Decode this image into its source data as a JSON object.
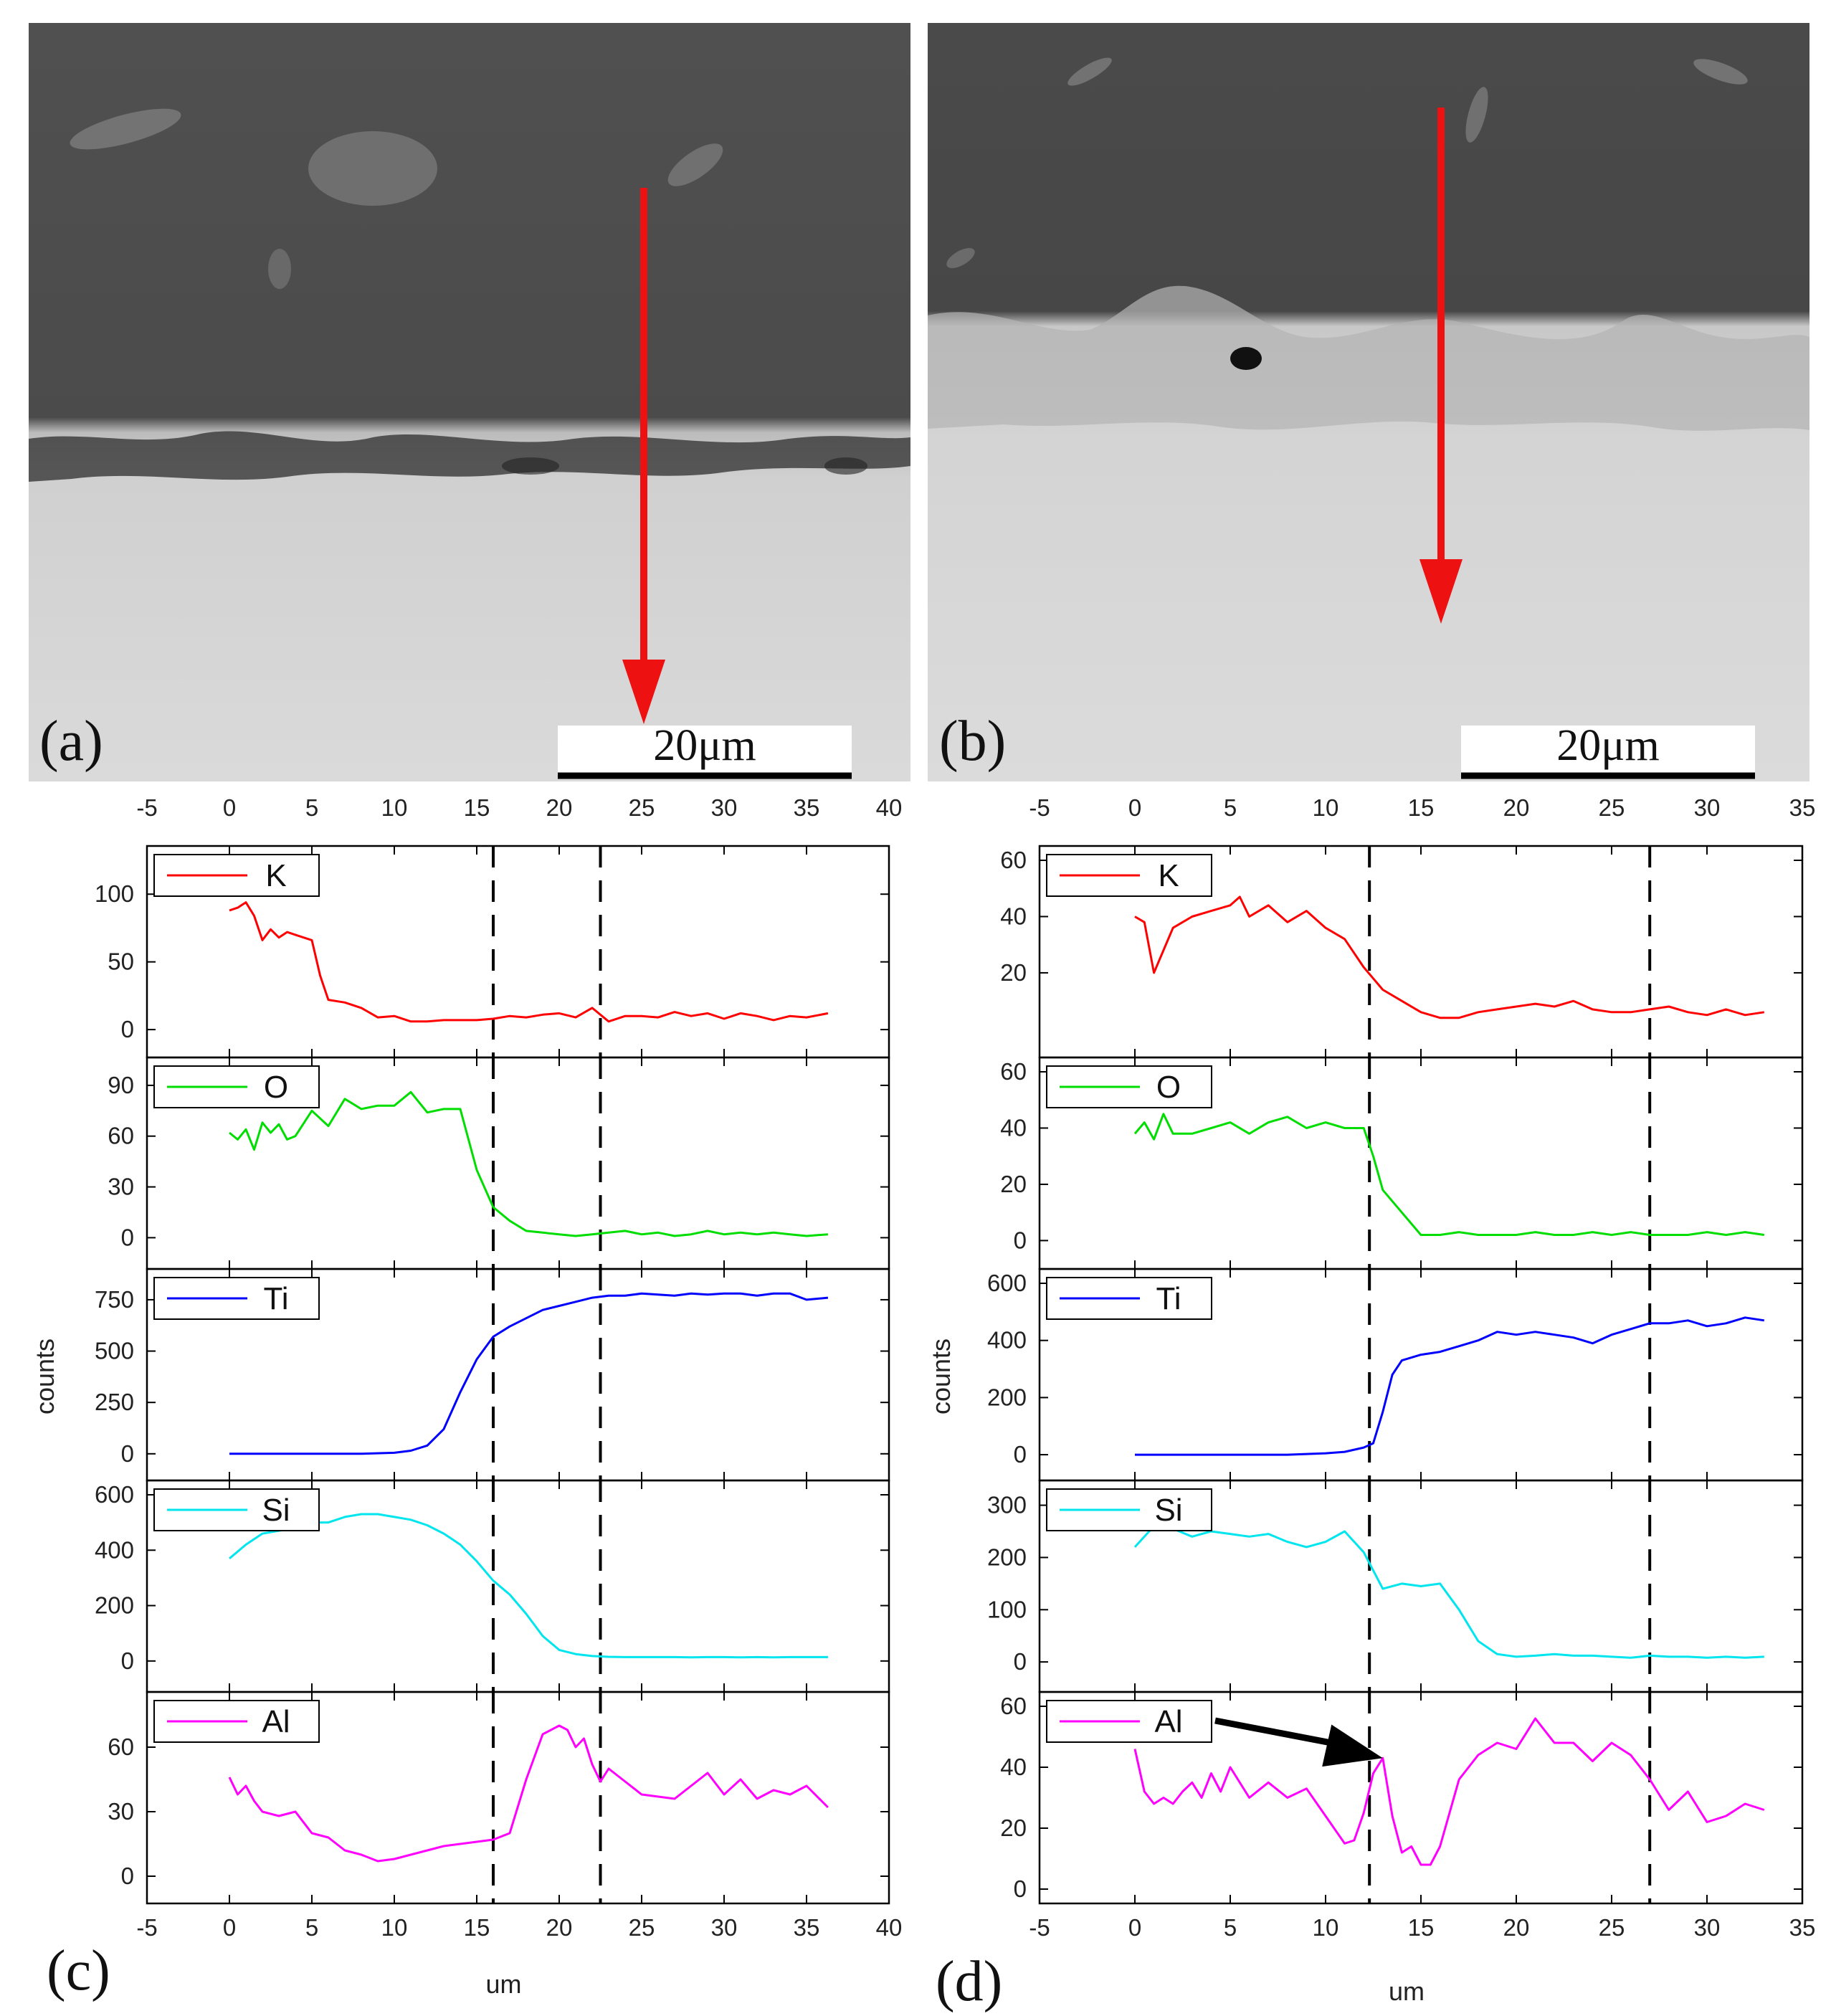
{
  "images": [
    {
      "label": "(a)",
      "scalebar": "20μm"
    },
    {
      "label": "(b)",
      "scalebar": "20μm"
    }
  ],
  "chart_data": [
    {
      "type": "line",
      "panel_label": "(c)",
      "xlabel": "um",
      "ylabel": "counts",
      "xlim": [
        -5,
        40
      ],
      "xticks": [
        -5,
        0,
        5,
        10,
        15,
        20,
        25,
        30,
        35,
        40
      ],
      "dashed_x": [
        16,
        22.5
      ],
      "subplots": [
        {
          "name": "K",
          "color": "#ff0000",
          "ylim": [
            -10,
            125
          ],
          "yticks": [
            0,
            50,
            100
          ],
          "x": [
            0,
            0.5,
            1,
            1.5,
            2,
            2.5,
            3,
            3.5,
            4,
            4.5,
            5,
            5.5,
            6,
            7,
            8,
            9,
            10,
            11,
            12,
            13,
            14,
            15,
            16,
            17,
            18,
            19,
            20,
            21,
            22,
            23,
            24,
            25,
            26,
            27,
            28,
            29,
            30,
            31,
            32,
            33,
            34,
            35,
            36.3
          ],
          "y": [
            88,
            90,
            94,
            84,
            66,
            74,
            68,
            72,
            70,
            68,
            66,
            40,
            22,
            20,
            16,
            9,
            10,
            6,
            6,
            7,
            7,
            7,
            8,
            10,
            9,
            11,
            12,
            9,
            16,
            6,
            10,
            10,
            9,
            13,
            10,
            12,
            8,
            12,
            10,
            7,
            10,
            9,
            12
          ]
        },
        {
          "name": "O",
          "color": "#00dd00",
          "ylim": [
            -10,
            98
          ],
          "yticks": [
            0,
            30,
            60,
            90
          ],
          "x": [
            0,
            0.5,
            1,
            1.5,
            2,
            2.5,
            3,
            3.5,
            4,
            5,
            6,
            7,
            8,
            9,
            10,
            11,
            12,
            13,
            14,
            15,
            16,
            17,
            18,
            19,
            20,
            21,
            22,
            23,
            24,
            25,
            26,
            27,
            28,
            29,
            30,
            31,
            32,
            33,
            34,
            35,
            36.3
          ],
          "y": [
            62,
            58,
            64,
            52,
            68,
            62,
            67,
            58,
            60,
            75,
            66,
            82,
            76,
            78,
            78,
            86,
            74,
            76,
            76,
            40,
            18,
            10,
            4,
            3,
            2,
            1,
            2,
            3,
            4,
            2,
            3,
            1,
            2,
            4,
            2,
            3,
            2,
            3,
            2,
            1,
            2
          ]
        },
        {
          "name": "Ti",
          "color": "#0000ff",
          "ylim": [
            -60,
            830
          ],
          "yticks": [
            0,
            250,
            500,
            750
          ],
          "x": [
            0,
            2,
            4,
            6,
            8,
            10,
            11,
            12,
            13,
            14,
            15,
            16,
            17,
            18,
            19,
            20,
            21,
            22,
            23,
            24,
            25,
            26,
            27,
            28,
            29,
            30,
            31,
            32,
            33,
            34,
            35,
            36.3
          ],
          "y": [
            0,
            0,
            0,
            0,
            0,
            5,
            15,
            40,
            120,
            300,
            460,
            570,
            620,
            660,
            700,
            720,
            740,
            760,
            770,
            770,
            780,
            775,
            770,
            780,
            775,
            780,
            780,
            770,
            780,
            780,
            750,
            760
          ]
        },
        {
          "name": "Si",
          "color": "#00e5ee",
          "ylim": [
            -60,
            600
          ],
          "yticks": [
            0,
            200,
            400,
            600
          ],
          "x": [
            0,
            1,
            2,
            3,
            4,
            5,
            6,
            7,
            8,
            9,
            10,
            11,
            12,
            13,
            14,
            15,
            16,
            17,
            18,
            19,
            20,
            21,
            22,
            23,
            24,
            25,
            26,
            27,
            28,
            29,
            30,
            31,
            32,
            33,
            34,
            35,
            36.3
          ],
          "y": [
            370,
            420,
            460,
            470,
            480,
            500,
            500,
            520,
            530,
            530,
            520,
            510,
            490,
            460,
            420,
            360,
            290,
            240,
            170,
            90,
            40,
            25,
            18,
            15,
            14,
            14,
            14,
            14,
            13,
            14,
            14,
            13,
            14,
            13,
            14,
            14,
            14
          ]
        },
        {
          "name": "Al",
          "color": "#ff00ff",
          "ylim": [
            -6,
            79
          ],
          "yticks": [
            0,
            30,
            60
          ],
          "x": [
            0,
            0.5,
            1,
            1.5,
            2,
            3,
            4,
            5,
            6,
            7,
            8,
            9,
            10,
            11,
            12,
            13,
            14,
            15,
            16,
            17,
            18,
            19,
            20,
            20.5,
            21,
            21.5,
            22,
            22.5,
            23,
            24,
            25,
            26,
            27,
            28,
            29,
            30,
            31,
            32,
            33,
            34,
            35,
            36.3
          ],
          "y": [
            46,
            38,
            42,
            35,
            30,
            28,
            30,
            20,
            18,
            12,
            10,
            7,
            8,
            10,
            12,
            14,
            15,
            16,
            17,
            20,
            45,
            66,
            70,
            68,
            60,
            64,
            52,
            44,
            50,
            44,
            38,
            37,
            36,
            42,
            48,
            38,
            45,
            36,
            40,
            38,
            42,
            32
          ]
        }
      ]
    },
    {
      "type": "line",
      "panel_label": "(d)",
      "xlabel": "um",
      "ylabel": "counts",
      "xlim": [
        -5,
        35
      ],
      "xticks": [
        -5,
        0,
        5,
        10,
        15,
        20,
        25,
        30,
        35
      ],
      "dashed_x": [
        12.3,
        27
      ],
      "annotation": {
        "target": "Al",
        "x": 13,
        "y": 43,
        "note": "arrow from legend"
      },
      "subplots": [
        {
          "name": "K",
          "color": "#ff0000",
          "ylim": [
            -5,
            60
          ],
          "yticks": [
            20,
            40,
            60
          ],
          "x": [
            0,
            0.5,
            1,
            1.5,
            2,
            3,
            4,
            5,
            5.5,
            6,
            7,
            8,
            9,
            10,
            11,
            12,
            12.5,
            13,
            14,
            15,
            16,
            17,
            18,
            19,
            20,
            21,
            22,
            23,
            24,
            25,
            26,
            27,
            28,
            29,
            30,
            31,
            32,
            33
          ],
          "y": [
            40,
            38,
            20,
            28,
            36,
            40,
            42,
            44,
            47,
            40,
            44,
            38,
            42,
            36,
            32,
            22,
            18,
            14,
            10,
            6,
            4,
            4,
            6,
            7,
            8,
            9,
            8,
            10,
            7,
            6,
            6,
            7,
            8,
            6,
            5,
            7,
            5,
            6
          ]
        },
        {
          "name": "O",
          "color": "#00dd00",
          "ylim": [
            -5,
            60
          ],
          "yticks": [
            0,
            20,
            40,
            60
          ],
          "x": [
            0,
            0.5,
            1,
            1.5,
            2,
            3,
            4,
            5,
            6,
            7,
            8,
            9,
            10,
            11,
            12,
            12.5,
            13,
            14,
            15,
            16,
            17,
            18,
            19,
            20,
            21,
            22,
            23,
            24,
            25,
            26,
            27,
            28,
            29,
            30,
            31,
            32,
            33
          ],
          "y": [
            38,
            42,
            36,
            45,
            38,
            38,
            40,
            42,
            38,
            42,
            44,
            40,
            42,
            40,
            40,
            30,
            18,
            10,
            2,
            2,
            3,
            2,
            2,
            2,
            3,
            2,
            2,
            3,
            2,
            3,
            2,
            2,
            2,
            3,
            2,
            3,
            2
          ]
        },
        {
          "name": "Ti",
          "color": "#0000ff",
          "ylim": [
            -40,
            600
          ],
          "yticks": [
            0,
            200,
            400,
            600
          ],
          "x": [
            0,
            2,
            4,
            6,
            8,
            10,
            11,
            12,
            12.5,
            13,
            13.5,
            14,
            15,
            16,
            17,
            18,
            19,
            20,
            21,
            22,
            23,
            24,
            25,
            26,
            27,
            28,
            29,
            30,
            31,
            32,
            33
          ],
          "y": [
            0,
            0,
            0,
            0,
            0,
            5,
            10,
            25,
            40,
            150,
            280,
            330,
            350,
            360,
            380,
            400,
            430,
            420,
            430,
            420,
            410,
            390,
            420,
            440,
            460,
            460,
            470,
            450,
            460,
            480,
            470
          ]
        },
        {
          "name": "Si",
          "color": "#00e5ee",
          "ylim": [
            -30,
            320
          ],
          "yticks": [
            0,
            100,
            200,
            300
          ],
          "x": [
            0,
            0.5,
            1,
            2,
            3,
            4,
            5,
            6,
            7,
            8,
            9,
            10,
            11,
            12,
            12.5,
            13,
            14,
            15,
            16,
            17,
            18,
            19,
            20,
            21,
            22,
            23,
            24,
            25,
            26,
            27,
            28,
            29,
            30,
            31,
            32,
            33
          ],
          "y": [
            220,
            240,
            260,
            255,
            240,
            250,
            245,
            240,
            245,
            230,
            220,
            230,
            250,
            210,
            175,
            140,
            150,
            145,
            150,
            100,
            40,
            15,
            10,
            12,
            15,
            12,
            12,
            10,
            8,
            12,
            10,
            10,
            8,
            10,
            8,
            10
          ]
        },
        {
          "name": "Al",
          "color": "#ff00ff",
          "ylim": [
            0,
            60
          ],
          "yticks": [
            0,
            20,
            40,
            60
          ],
          "x": [
            0,
            0.5,
            1,
            1.5,
            2,
            2.5,
            3,
            3.5,
            4,
            4.5,
            5,
            6,
            7,
            8,
            9,
            10,
            11,
            11.5,
            12,
            12.5,
            13,
            13.5,
            14,
            14.5,
            15,
            15.5,
            16,
            17,
            18,
            19,
            20,
            21,
            21.5,
            22,
            23,
            24,
            25,
            26,
            27,
            28,
            29,
            30,
            31,
            32,
            33
          ],
          "y": [
            46,
            32,
            28,
            30,
            28,
            32,
            35,
            30,
            38,
            32,
            40,
            30,
            35,
            30,
            33,
            24,
            15,
            16,
            25,
            38,
            43,
            24,
            12,
            14,
            8,
            8,
            14,
            36,
            44,
            48,
            46,
            56,
            52,
            48,
            48,
            42,
            48,
            44,
            36,
            26,
            32,
            22,
            24,
            28,
            26
          ]
        }
      ]
    }
  ]
}
